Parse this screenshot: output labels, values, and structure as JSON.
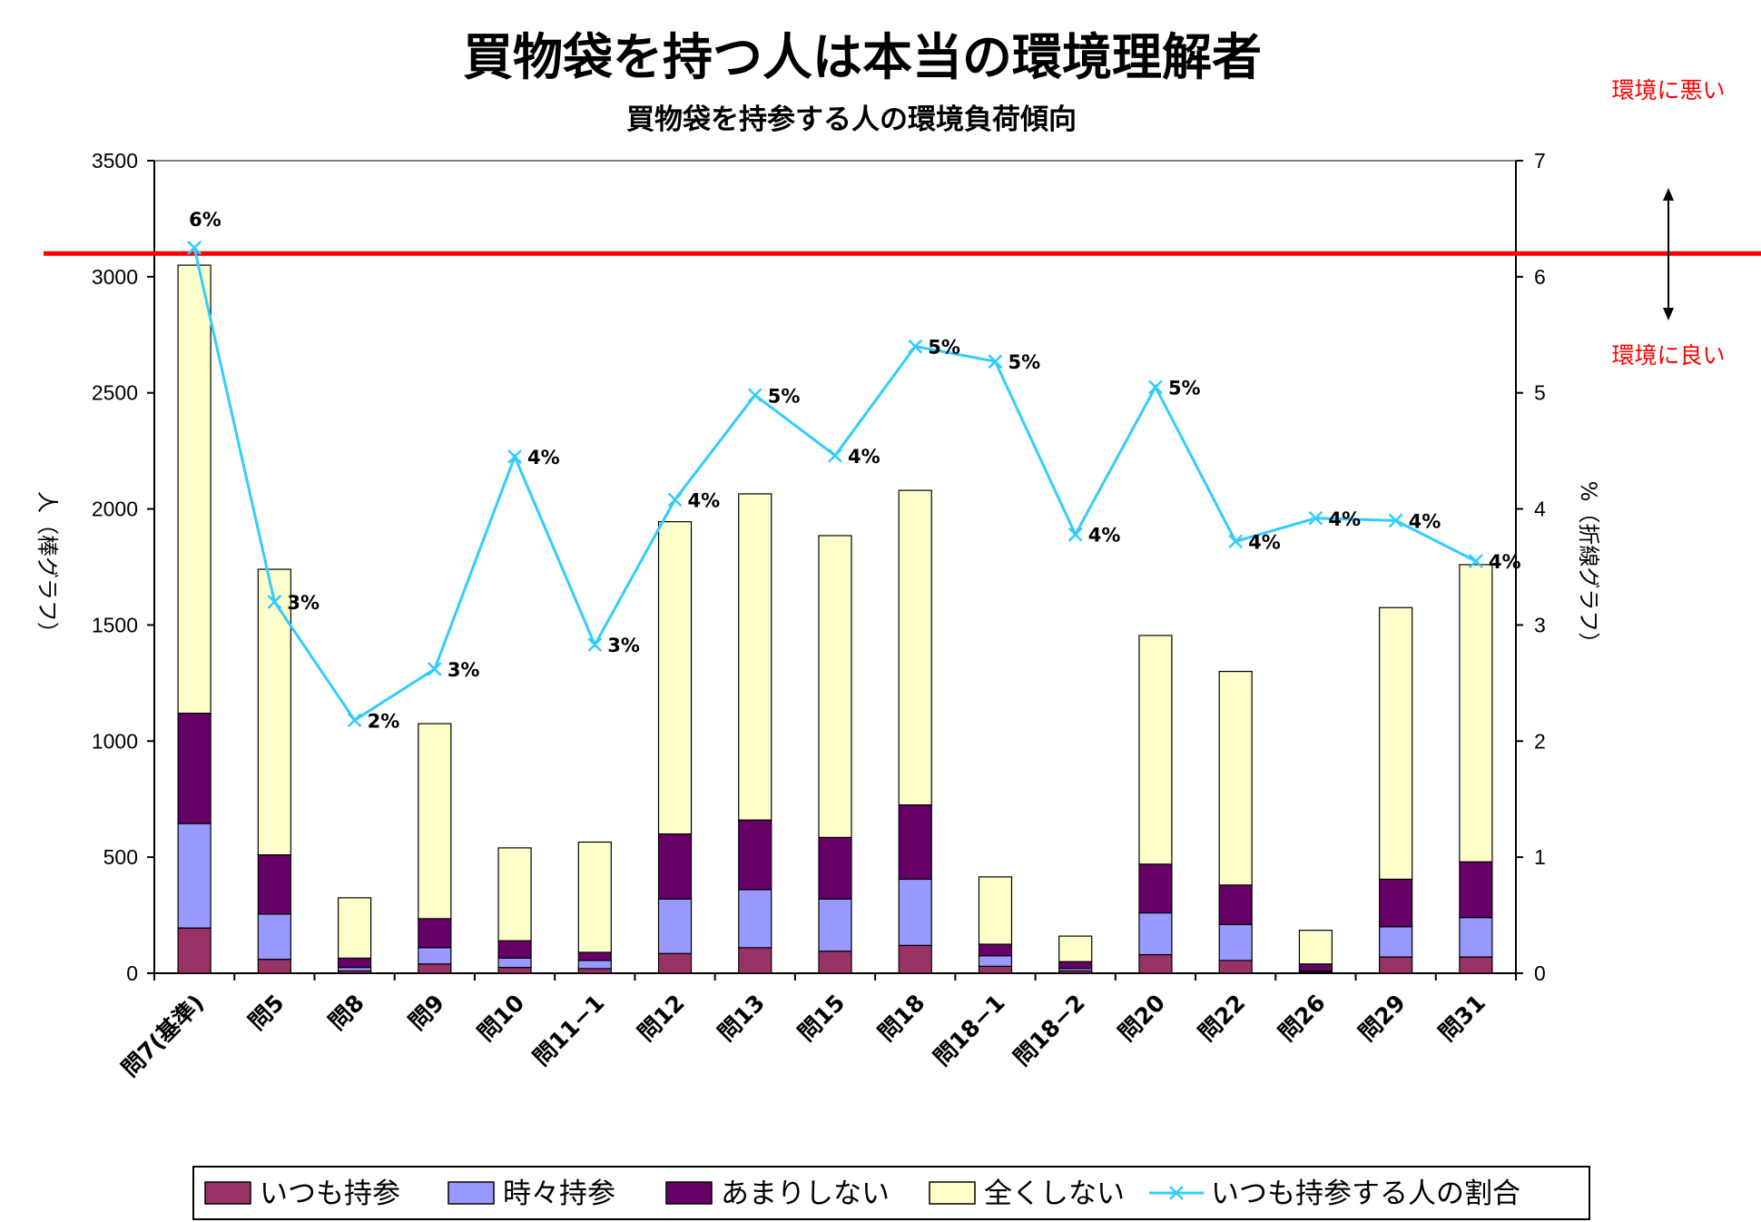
{
  "chart_data": {
    "type": "bar",
    "title": "買物袋を持つ人は本当の環境理解者",
    "subtitle": "買物袋を持参する人の環境負荷傾向",
    "ylabel": "人（棒グラフ）",
    "y2label": "%（折線グラフ）",
    "ylim": [
      0,
      3500
    ],
    "y2lim": [
      0,
      7
    ],
    "yticks": [
      "0",
      "500",
      "1000",
      "1500",
      "2000",
      "2500",
      "3000",
      "3500"
    ],
    "y2ticks": [
      "0",
      "1",
      "2",
      "3",
      "4",
      "5",
      "6",
      "7"
    ],
    "categories": [
      "問7(基準)",
      "問5",
      "問8",
      "問9",
      "問10",
      "問11−1",
      "問12",
      "問13",
      "問15",
      "問18",
      "問18−1",
      "問18−2",
      "問20",
      "問22",
      "問26",
      "問29",
      "問31"
    ],
    "series": [
      {
        "name": "いつも持参",
        "color": "#993366",
        "values": [
          195,
          60,
          10,
          40,
          25,
          20,
          85,
          110,
          95,
          120,
          30,
          10,
          80,
          55,
          5,
          70,
          70
        ]
      },
      {
        "name": "時々持参",
        "color": "#9999ff",
        "values": [
          450,
          195,
          15,
          70,
          40,
          35,
          235,
          250,
          225,
          285,
          45,
          10,
          180,
          155,
          5,
          130,
          170
        ]
      },
      {
        "name": "あまりしない",
        "color": "#660066",
        "values": [
          475,
          255,
          40,
          125,
          75,
          35,
          280,
          300,
          265,
          320,
          50,
          30,
          210,
          170,
          30,
          205,
          240
        ]
      },
      {
        "name": "全くしない",
        "color": "#ffffcc",
        "values": [
          1930,
          1230,
          260,
          840,
          400,
          475,
          1345,
          1405,
          1300,
          1355,
          290,
          110,
          985,
          920,
          145,
          1170,
          1280
        ]
      }
    ],
    "line_series": {
      "name": "いつも持参する人の割合",
      "color": "#33ccff",
      "values": [
        6.25,
        3.2,
        2.18,
        2.62,
        4.45,
        2.83,
        4.08,
        4.98,
        4.46,
        5.4,
        5.27,
        3.78,
        5.05,
        3.72,
        3.92,
        3.9,
        3.55
      ],
      "labels": [
        "6%",
        "3%",
        "2%",
        "3%",
        "4%",
        "3%",
        "4%",
        "5%",
        "4%",
        "5%",
        "5%",
        "4%",
        "5%",
        "4%",
        "4%",
        "4%",
        "4%"
      ]
    },
    "reference_line": {
      "value": 3100,
      "color": "#ff0000"
    },
    "annotations": {
      "bad": "環境に悪い",
      "good": "環境に良い"
    },
    "legend": "bottom"
  }
}
